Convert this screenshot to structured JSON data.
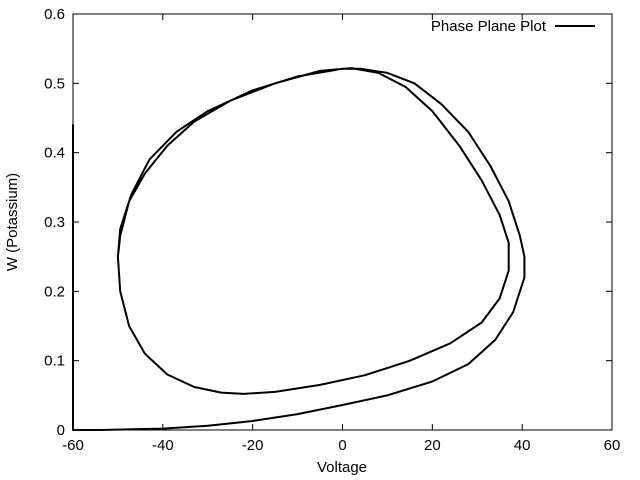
{
  "chart_data": {
    "type": "line",
    "title": "",
    "xlabel": "Voltage",
    "ylabel": "W (Potassium)",
    "xlim": [
      -60,
      60
    ],
    "ylim": [
      0,
      0.6
    ],
    "xticks": [
      -60,
      -40,
      -20,
      0,
      20,
      40,
      60
    ],
    "yticks": [
      0,
      0.1,
      0.2,
      0.3,
      0.4,
      0.5,
      0.6
    ],
    "xtick_labels": [
      "-60",
      "-40",
      "-20",
      "0",
      "20",
      "40",
      "60"
    ],
    "ytick_labels": [
      "0",
      "0.1",
      "0.2",
      "0.3",
      "0.4",
      "0.5",
      "0.6"
    ],
    "grid": false,
    "legend_position": "top-right",
    "series": [
      {
        "name": "Phase Plane Plot",
        "color": "#000000",
        "points": [
          [
            -60,
            0.44
          ],
          [
            -60,
            0.22
          ],
          [
            -60,
            0.0
          ],
          [
            -54,
            0.0
          ],
          [
            -40,
            0.002
          ],
          [
            -30,
            0.006
          ],
          [
            -20,
            0.013
          ],
          [
            -10,
            0.023
          ],
          [
            0,
            0.036
          ],
          [
            10,
            0.05
          ],
          [
            20,
            0.07
          ],
          [
            28,
            0.095
          ],
          [
            34,
            0.13
          ],
          [
            38,
            0.17
          ],
          [
            40.5,
            0.22
          ],
          [
            40.5,
            0.25
          ],
          [
            39.5,
            0.28
          ],
          [
            37,
            0.33
          ],
          [
            33,
            0.38
          ],
          [
            28,
            0.43
          ],
          [
            22,
            0.47
          ],
          [
            16,
            0.5
          ],
          [
            10,
            0.515
          ],
          [
            4,
            0.521
          ],
          [
            0,
            0.521
          ],
          [
            -10,
            0.51
          ],
          [
            -20,
            0.49
          ],
          [
            -30,
            0.46
          ],
          [
            -37,
            0.43
          ],
          [
            -43,
            0.39
          ],
          [
            -47,
            0.34
          ],
          [
            -49.5,
            0.29
          ],
          [
            -50,
            0.25
          ],
          [
            -49.5,
            0.2
          ],
          [
            -47.5,
            0.15
          ],
          [
            -44,
            0.11
          ],
          [
            -39,
            0.08
          ],
          [
            -33,
            0.062
          ],
          [
            -27,
            0.054
          ],
          [
            -22,
            0.052
          ],
          [
            -15,
            0.055
          ],
          [
            -5,
            0.065
          ],
          [
            5,
            0.079
          ],
          [
            15,
            0.1
          ],
          [
            24,
            0.125
          ],
          [
            31,
            0.155
          ],
          [
            35,
            0.19
          ],
          [
            37,
            0.23
          ],
          [
            37,
            0.27
          ],
          [
            35,
            0.31
          ],
          [
            31,
            0.36
          ],
          [
            26,
            0.41
          ],
          [
            20,
            0.46
          ],
          [
            14,
            0.495
          ],
          [
            8,
            0.515
          ],
          [
            2,
            0.522
          ],
          [
            -5,
            0.518
          ],
          [
            -15,
            0.5
          ],
          [
            -25,
            0.475
          ],
          [
            -33,
            0.445
          ],
          [
            -39,
            0.41
          ],
          [
            -44,
            0.37
          ],
          [
            -47.5,
            0.33
          ],
          [
            -49.5,
            0.28
          ],
          [
            -50,
            0.25
          ]
        ]
      }
    ]
  }
}
